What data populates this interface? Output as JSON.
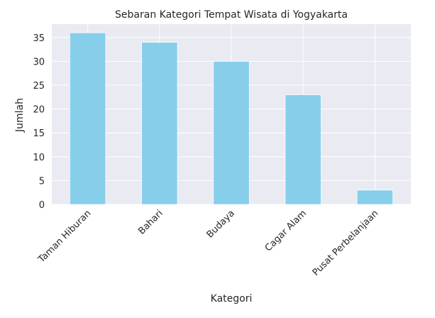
{
  "chart_data": {
    "type": "bar",
    "title": "Sebaran Kategori Tempat Wisata di Yogyakarta",
    "xlabel": "Kategori",
    "ylabel": "Jumlah",
    "categories": [
      "Taman Hiburan",
      "Bahari",
      "Budaya",
      "Cagar Alam",
      "Pusat Perbelanjaan"
    ],
    "values": [
      36,
      34,
      30,
      23,
      3
    ],
    "ylim": [
      0,
      37.8
    ],
    "yticks": [
      0,
      5,
      10,
      15,
      20,
      25,
      30,
      35
    ],
    "grid": true,
    "bar_color": "#87ceeb",
    "plot_background": "#eaeaf2",
    "grid_color": "#ffffff"
  }
}
